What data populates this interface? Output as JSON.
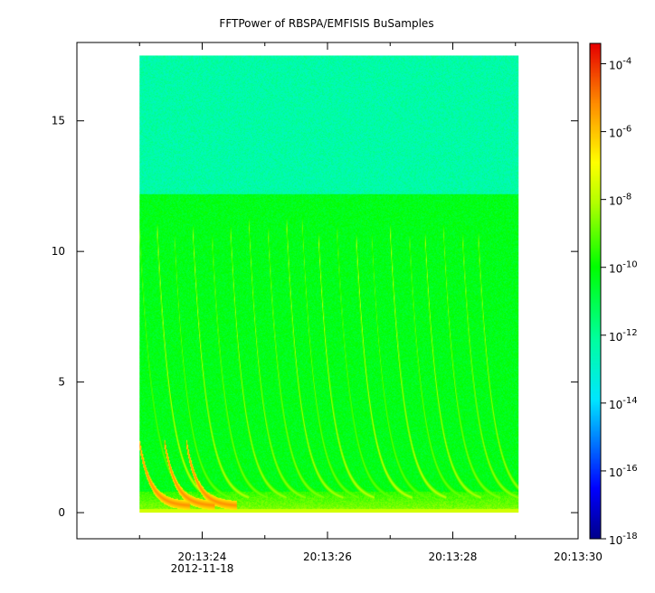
{
  "chart_data": {
    "type": "heatmap",
    "title": "FFTPower of RBSPA/EMFISIS  BuSamples",
    "xlabel": "",
    "ylabel": "",
    "x_ticks": [
      {
        "label": "20:13:24",
        "sublabel": "2012-11-18",
        "t": 24
      },
      {
        "label": "20:13:26",
        "sublabel": "",
        "t": 26
      },
      {
        "label": "20:13:28",
        "sublabel": "",
        "t": 28
      },
      {
        "label": "20:13:30",
        "sublabel": "",
        "t": 30
      }
    ],
    "x_minor_ticks": [
      23,
      25,
      27,
      29
    ],
    "xlim_seconds": [
      22.0,
      30.0
    ],
    "data_x_range_seconds": [
      23.0,
      29.05
    ],
    "yticks": [
      "0",
      "5",
      "10",
      "15"
    ],
    "ylim": [
      -1.0,
      18.0
    ],
    "data_y_range": [
      0.0,
      17.5
    ],
    "colorbar": {
      "scale": "log",
      "range": [
        -18,
        -3.4
      ],
      "ticks": [
        {
          "base": "10",
          "exp": "-4",
          "value": -4
        },
        {
          "base": "10",
          "exp": "-6",
          "value": -6
        },
        {
          "base": "10",
          "exp": "-8",
          "value": -8
        },
        {
          "base": "10",
          "exp": "-10",
          "value": -10
        },
        {
          "base": "10",
          "exp": "-12",
          "value": -12
        },
        {
          "base": "10",
          "exp": "-14",
          "value": -14
        },
        {
          "base": "10",
          "exp": "-16",
          "value": -16
        },
        {
          "base": "10",
          "exp": "-18",
          "value": -18
        }
      ]
    },
    "power_levels": {
      "upper_band_above_12": -12.3,
      "lower_band_below_12": -10.3,
      "near_zero_band": -8.5
    },
    "features": {
      "striations_start_seconds": [
        23.0,
        23.28,
        23.55,
        23.85,
        24.15,
        24.45,
        24.75,
        25.05,
        25.35,
        25.6,
        25.85,
        26.15,
        26.45,
        26.7,
        27.0,
        27.3,
        27.55,
        27.85,
        28.15,
        28.4
      ],
      "intense_chorus_start_seconds": [
        23.0,
        23.4,
        23.75
      ]
    },
    "grid": false,
    "legend": "none"
  }
}
